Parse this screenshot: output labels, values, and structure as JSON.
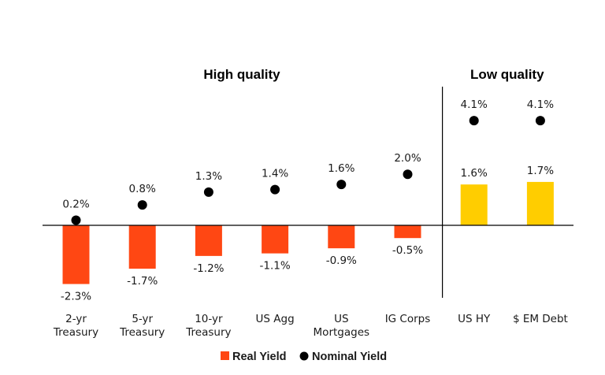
{
  "chart_data": {
    "type": "bar",
    "groups": [
      {
        "label": "High quality",
        "categories": [
          0,
          1,
          2,
          3,
          4,
          5
        ]
      },
      {
        "label": "Low quality",
        "categories": [
          6,
          7
        ]
      }
    ],
    "categories": [
      [
        "2-yr",
        "Treasury"
      ],
      [
        "5-yr",
        "Treasury"
      ],
      [
        "10-yr",
        "Treasury"
      ],
      [
        "US Agg"
      ],
      [
        "US",
        "Mortgages"
      ],
      [
        "IG Corps"
      ],
      [
        "US HY"
      ],
      [
        "$ EM Debt"
      ]
    ],
    "series": [
      {
        "name": "Real Yield",
        "kind": "bar",
        "values": [
          -2.3,
          -1.7,
          -1.2,
          -1.1,
          -0.9,
          -0.5,
          1.6,
          1.7
        ],
        "labels": [
          "-2.3%",
          "-1.7%",
          "-1.2%",
          "-1.1%",
          "-0.9%",
          "-0.5%",
          "1.6%",
          "1.7%"
        ]
      },
      {
        "name": "Nominal Yield",
        "kind": "dot",
        "values": [
          0.2,
          0.8,
          1.3,
          1.4,
          1.6,
          2.0,
          4.1,
          4.1
        ],
        "labels": [
          "0.2%",
          "0.8%",
          "1.3%",
          "1.4%",
          "1.6%",
          "2.0%",
          "4.1%",
          "4.1%"
        ]
      }
    ],
    "colors": {
      "high_quality_bar": "#ff4713",
      "low_quality_bar": "#ffcd00",
      "dot": "#000000",
      "axis": "#000000"
    },
    "legend": {
      "placement": "bottom-center",
      "items": [
        {
          "label": "Real Yield",
          "marker": "square",
          "color": "#ff4713"
        },
        {
          "label": "Nominal Yield",
          "marker": "circle",
          "color": "#000000"
        }
      ]
    },
    "grid": false
  }
}
